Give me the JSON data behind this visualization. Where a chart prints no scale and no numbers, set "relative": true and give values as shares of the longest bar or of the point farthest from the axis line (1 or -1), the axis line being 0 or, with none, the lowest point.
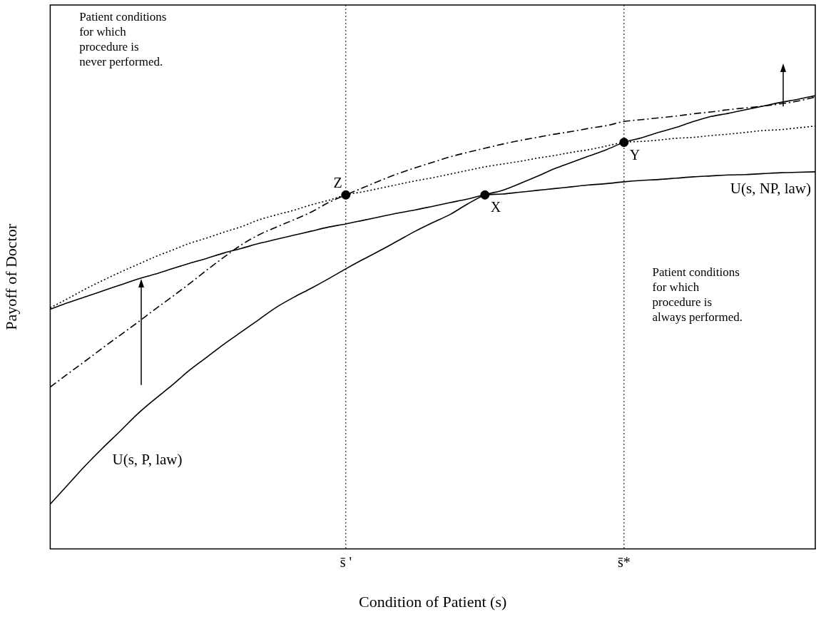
{
  "chart_data": {
    "type": "line",
    "relative": true,
    "xlabel": "Condition of Patient (s)",
    "ylabel": "Payoff of Doctor",
    "categories": [
      null,
      null,
      null,
      null,
      null,
      null,
      null,
      null,
      null,
      null,
      null,
      null,
      null,
      null,
      null,
      null,
      null,
      "s̄ '",
      null,
      null,
      null,
      null,
      null,
      null,
      null,
      null,
      null,
      null,
      null,
      null,
      null,
      null,
      null,
      "s̄*",
      null,
      null,
      null,
      null,
      null,
      null,
      null,
      null,
      null,
      null,
      null
    ],
    "grid": false,
    "legend": false,
    "marker": "none",
    "series": [
      {
        "name": "U(s, P, law)",
        "color": "#000000",
        "line_style": "solid",
        "values": [
          0.099,
          0.141,
          0.183,
          0.222,
          0.259,
          0.297,
          0.33,
          0.361,
          0.394,
          0.423,
          0.452,
          0.479,
          0.506,
          0.533,
          0.555,
          0.575,
          0.596,
          0.618,
          0.639,
          0.659,
          0.68,
          0.701,
          0.72,
          0.738,
          0.761,
          0.781,
          0.791,
          0.806,
          0.822,
          0.839,
          0.853,
          0.867,
          0.881,
          0.897,
          0.907,
          0.919,
          0.93,
          0.943,
          0.954,
          0.961,
          0.969,
          0.977,
          0.985,
          0.992,
          1
        ]
      },
      {
        "name": "U(s, NP, law)",
        "color": "#000000",
        "line_style": "solid",
        "values": [
          0.529,
          0.543,
          0.556,
          0.569,
          0.582,
          0.595,
          0.606,
          0.618,
          0.63,
          0.641,
          0.653,
          0.663,
          0.674,
          0.683,
          0.692,
          0.701,
          0.71,
          0.717,
          0.725,
          0.733,
          0.741,
          0.748,
          0.756,
          0.764,
          0.772,
          0.781,
          0.783,
          0.787,
          0.791,
          0.795,
          0.799,
          0.803,
          0.806,
          0.81,
          0.813,
          0.815,
          0.818,
          0.821,
          0.823,
          0.825,
          0.826,
          0.828,
          0.83,
          0.831,
          0.832
        ]
      },
      {
        "color": "#000000",
        "line_style": "dotted",
        "values": [
          0.532,
          0.552,
          0.573,
          0.592,
          0.61,
          0.627,
          0.644,
          0.659,
          0.674,
          0.686,
          0.699,
          0.711,
          0.726,
          0.737,
          0.747,
          0.759,
          0.769,
          0.781,
          0.788,
          0.796,
          0.804,
          0.812,
          0.819,
          0.827,
          0.835,
          0.843,
          0.849,
          0.855,
          0.862,
          0.868,
          0.875,
          0.881,
          0.889,
          0.897,
          0.899,
          0.902,
          0.906,
          0.908,
          0.912,
          0.915,
          0.919,
          0.923,
          0.925,
          0.929,
          0.933
        ]
      },
      {
        "color": "#000000",
        "line_style": "dashed",
        "values": [
          0.357,
          0.386,
          0.414,
          0.443,
          0.471,
          0.499,
          0.528,
          0.556,
          0.585,
          0.615,
          0.644,
          0.671,
          0.693,
          0.71,
          0.726,
          0.743,
          0.764,
          0.781,
          0.797,
          0.813,
          0.828,
          0.841,
          0.853,
          0.865,
          0.875,
          0.884,
          0.893,
          0.901,
          0.908,
          0.915,
          0.921,
          0.928,
          0.934,
          0.943,
          0.947,
          0.951,
          0.955,
          0.96,
          0.964,
          0.969,
          0.973,
          0.977,
          0.982,
          0.988,
          0.997
        ]
      },
      {
        "type": "scatter",
        "color": "#000000",
        "marker": "circle",
        "values": [
          null,
          null,
          null,
          null,
          null,
          null,
          null,
          null,
          null,
          null,
          null,
          null,
          null,
          null,
          null,
          null,
          null,
          0.781,
          null,
          null,
          null,
          null,
          null,
          null,
          null,
          0.781,
          null,
          null,
          null,
          null,
          null,
          null,
          null,
          0.897,
          null,
          null,
          null,
          null,
          null,
          null,
          null,
          null,
          null,
          null,
          null
        ]
      }
    ],
    "ref_lines": [
      {
        "axis": "x",
        "value": "s̄ '",
        "line_style": "dotted"
      },
      {
        "axis": "x",
        "value": "s̄*",
        "line_style": "dotted"
      }
    ],
    "annotations": [
      "Z",
      "X",
      "Y",
      "Patient conditions\nfor which\nprocedure is\nnever performed.",
      "Patient conditions\nfor which\nprocedure is\nalways performed."
    ]
  }
}
